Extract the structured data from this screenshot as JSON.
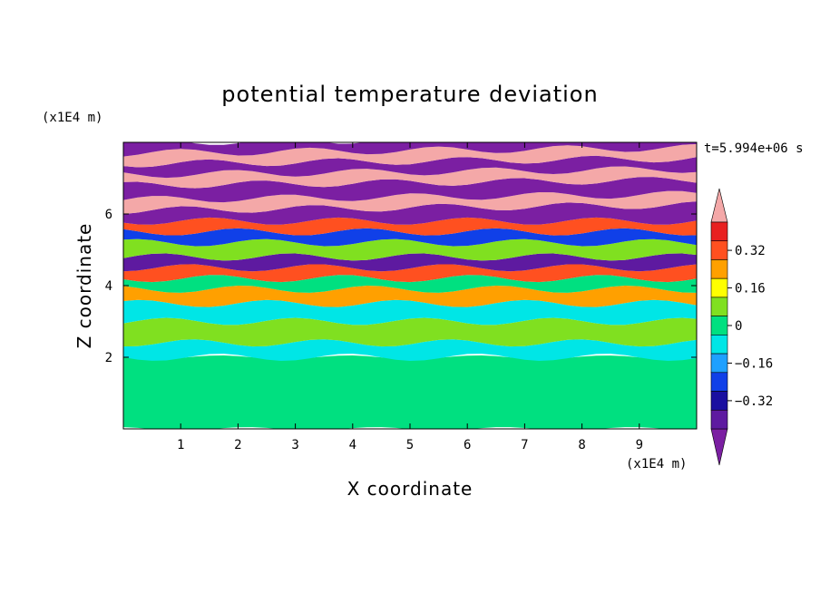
{
  "chart_data": {
    "type": "heatmap",
    "title": "potential temperature deviation",
    "xlabel": "X coordinate",
    "ylabel": "Z coordinate",
    "x_unit": "(x1E4 m)",
    "y_unit": "(x1E4 m)",
    "time_label": "t=5.994e+06 s",
    "xlim": [
      0,
      10
    ],
    "ylim": [
      0,
      8
    ],
    "x_ticks": [
      "1",
      "2",
      "3",
      "4",
      "5",
      "6",
      "7",
      "8",
      "9"
    ],
    "y_ticks": [
      "2",
      "4",
      "6"
    ],
    "colorbar": {
      "levels": [
        -0.48,
        -0.4,
        -0.32,
        -0.24,
        -0.16,
        -0.08,
        0,
        0.08,
        0.16,
        0.24,
        0.32,
        0.4,
        0.48
      ],
      "labels": [
        "0.32",
        "0.16",
        "0",
        "−0.16",
        "−0.32"
      ],
      "colors": [
        "#7b1fa2",
        "#5e1aa0",
        "#1a0fa0",
        "#1040e8",
        "#1ea0ff",
        "#00e6e6",
        "#00e080",
        "#80e020",
        "#ffff00",
        "#ffa000",
        "#ff5020",
        "#e82020",
        "#f4a8a8"
      ]
    },
    "bands": [
      {
        "z0": 0.0,
        "z1": 2.0,
        "value": 0.04
      },
      {
        "z0": 2.0,
        "z1": 2.4,
        "value": -0.08
      },
      {
        "z0": 2.4,
        "z1": 3.0,
        "value": 0.1
      },
      {
        "z0": 3.0,
        "z1": 3.5,
        "value": -0.1
      },
      {
        "z0": 3.5,
        "z1": 3.9,
        "value": 0.2
      },
      {
        "z0": 3.9,
        "z1": 4.2,
        "value": 0.0
      },
      {
        "z0": 4.2,
        "z1": 4.5,
        "value": 0.36
      },
      {
        "z0": 4.5,
        "z1": 4.8,
        "value": -0.4
      },
      {
        "z0": 4.8,
        "z1": 5.2,
        "value": 0.12
      },
      {
        "z0": 5.2,
        "z1": 5.5,
        "value": -0.2
      },
      {
        "z0": 5.5,
        "z1": 5.8,
        "value": 0.28
      },
      {
        "z0": 5.8,
        "z1": 6.1,
        "value": -0.44
      },
      {
        "z0": 6.1,
        "z1": 6.4,
        "value": 0.48
      },
      {
        "z0": 6.4,
        "z1": 6.8,
        "value": -0.48
      },
      {
        "z0": 6.8,
        "z1": 7.1,
        "value": 0.48
      },
      {
        "z0": 7.1,
        "z1": 7.4,
        "value": -0.48
      },
      {
        "z0": 7.4,
        "z1": 7.7,
        "value": 0.48
      },
      {
        "z0": 7.7,
        "z1": 8.0,
        "value": -0.48
      }
    ]
  }
}
